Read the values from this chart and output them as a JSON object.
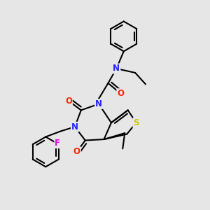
{
  "bg_color": "#e6e6e6",
  "bond_color": "#000000",
  "bond_width": 1.5,
  "atom_colors": {
    "N": "#2222ff",
    "O": "#ff2200",
    "S": "#cccc00",
    "F": "#ee00ee",
    "C": "#000000"
  },
  "font_size_atom": 8.5
}
